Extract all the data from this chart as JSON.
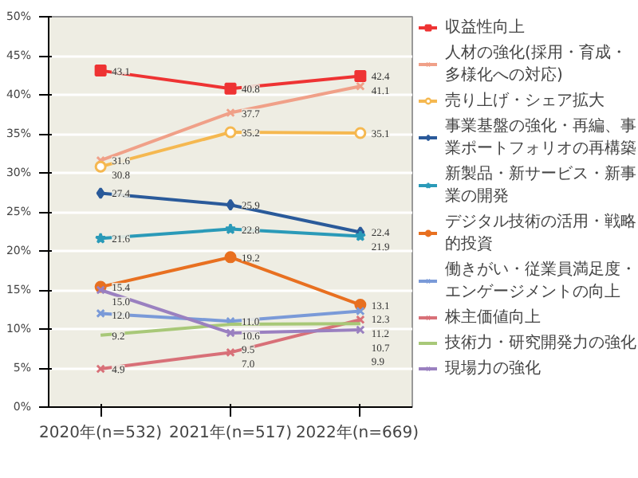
{
  "chart_data": {
    "type": "line",
    "categories": [
      "2020年(n=532)",
      "2021年(n=517)",
      "2022年(n=669)"
    ],
    "ylim": [
      0,
      50
    ],
    "yticks": [
      {
        "value": 0,
        "label": "0%"
      },
      {
        "value": 5,
        "label": "5%"
      },
      {
        "value": 10,
        "label": "10%"
      },
      {
        "value": 15,
        "label": "15%"
      },
      {
        "value": 20,
        "label": "20%"
      },
      {
        "value": 25,
        "label": "25%"
      },
      {
        "value": 30,
        "label": "30%"
      },
      {
        "value": 35,
        "label": "35%"
      },
      {
        "value": 40,
        "label": "40%"
      },
      {
        "value": 45,
        "label": "45%"
      },
      {
        "value": 50,
        "label": "50%"
      }
    ],
    "grid": "y",
    "legend": "right",
    "line_style": "solid",
    "series": [
      {
        "name": "収益性向上",
        "color": "#ee3333",
        "marker": "square",
        "values": [
          43.1,
          40.8,
          42.4
        ],
        "value_labels": [
          "43.1",
          "40.8",
          "42.4"
        ]
      },
      {
        "name": "人材の強化(採用・育成・多様化への対応)",
        "color": "#f0a088",
        "marker": "cross",
        "values": [
          31.6,
          37.7,
          41.1
        ],
        "value_labels": [
          "31.6",
          "37.7",
          "41.1"
        ]
      },
      {
        "name": "売り上げ・シェア拡大",
        "color": "#f5b850",
        "marker": "circle",
        "values": [
          30.8,
          35.2,
          35.1
        ],
        "value_labels": [
          "30.8",
          "35.2",
          "35.1"
        ]
      },
      {
        "name": "事業基盤の強化・再編、事業ポートフォリオの再構築",
        "color": "#2a5a9a",
        "marker": "diamond",
        "values": [
          27.4,
          25.9,
          22.4
        ],
        "value_labels": [
          "27.4",
          "25.9",
          "22.4"
        ]
      },
      {
        "name": "新製品・新サービス・新事業の開発",
        "color": "#2a9ab8",
        "marker": "star",
        "values": [
          21.6,
          22.8,
          21.9
        ],
        "value_labels": [
          "21.6",
          "22.8",
          "21.9"
        ]
      },
      {
        "name": "デジタル技術の活用・戦略的投資",
        "color": "#e87020",
        "marker": "circle",
        "values": [
          15.4,
          19.2,
          13.1
        ],
        "value_labels": [
          "15.4",
          "19.2",
          "13.1"
        ]
      },
      {
        "name": "働きがい・従業員満足度・エンゲージメントの向上",
        "color": "#7a9ad8",
        "marker": "cross",
        "values": [
          12.0,
          11.0,
          12.3
        ],
        "value_labels": [
          "12.0",
          "11.0",
          "12.3"
        ]
      },
      {
        "name": "株主価値向上",
        "color": "#d87078",
        "marker": "cross",
        "values": [
          4.9,
          7.0,
          11.2
        ],
        "value_labels": [
          "4.9",
          "7.0",
          "11.2"
        ]
      },
      {
        "name": "技術力・研究開発力の強化",
        "color": "#a8c878",
        "marker": "none",
        "values": [
          9.2,
          10.6,
          10.7
        ],
        "value_labels": [
          "9.2",
          "10.6",
          "10.7"
        ]
      },
      {
        "name": "現場力の強化",
        "color": "#9a80c0",
        "marker": "cross",
        "values": [
          15.0,
          9.5,
          9.9
        ],
        "value_labels": [
          "15.0",
          "9.5",
          "9.9"
        ]
      }
    ]
  }
}
